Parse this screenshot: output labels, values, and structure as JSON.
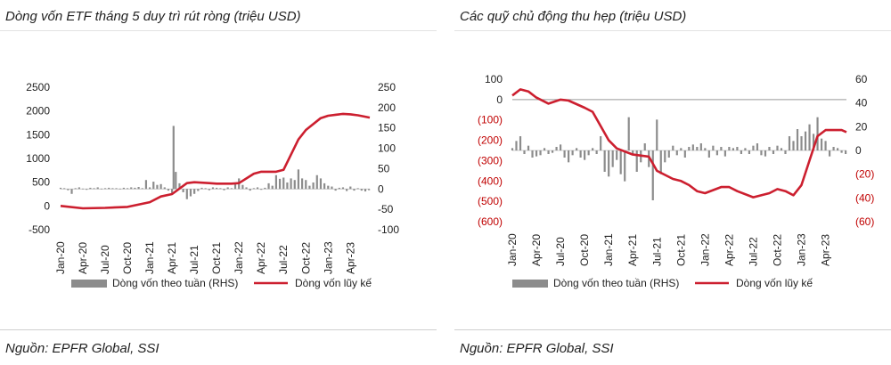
{
  "chart_data": [
    {
      "type": "bar+line",
      "title": "Dòng vốn ETF tháng 5 duy trì rút ròng (triệu USD)",
      "source": "Nguồn: EPFR Global, SSI",
      "x_ticks": [
        "Jan-20",
        "Apr-20",
        "Jul-20",
        "Oct-20",
        "Jan-21",
        "Apr-21",
        "Jul-21",
        "Oct-21",
        "Jan-22",
        "Apr-22",
        "Jul-22",
        "Oct-22",
        "Jan-23",
        "Apr-23"
      ],
      "y_left_ticks": [
        "2500",
        "2000",
        "1500",
        "1000",
        "500",
        "0",
        "-500"
      ],
      "y_left_range": [
        -500,
        2500
      ],
      "y_right_ticks": [
        "250",
        "200",
        "150",
        "100",
        "50",
        "0",
        "-50",
        "-100"
      ],
      "y_right_range": [
        -100,
        250
      ],
      "legend": {
        "bar": "Dòng vốn theo tuần (RHS)",
        "line": "Dòng vốn lũy kế"
      },
      "colors": {
        "bar": "#8c8c8c",
        "line": "#cc1f2f"
      },
      "line_series": {
        "name": "Dòng vốn lũy kế",
        "x": [
          0,
          3,
          6,
          9,
          12,
          13.5,
          15,
          17,
          18,
          20,
          21,
          23,
          24,
          26,
          27,
          29,
          30,
          32,
          33,
          35,
          36,
          37,
          38,
          39,
          40,
          41,
          41.6
        ],
        "y": [
          0,
          -50,
          -40,
          -20,
          80,
          200,
          250,
          480,
          500,
          480,
          470,
          470,
          480,
          680,
          720,
          720,
          760,
          1400,
          1600,
          1850,
          1900,
          1920,
          1940,
          1930,
          1910,
          1880,
          1860
        ]
      },
      "bar_series": {
        "name": "Dòng vốn theo tuần (RHS)",
        "points": [
          [
            0,
            3
          ],
          [
            0.5,
            2
          ],
          [
            1,
            -3
          ],
          [
            1.5,
            -12
          ],
          [
            2,
            2
          ],
          [
            2.5,
            4
          ],
          [
            3,
            1
          ],
          [
            3.5,
            -2
          ],
          [
            4,
            3
          ],
          [
            4.5,
            2
          ],
          [
            5,
            4
          ],
          [
            5.5,
            1
          ],
          [
            6,
            2
          ],
          [
            6.5,
            3
          ],
          [
            7,
            2
          ],
          [
            7.5,
            2
          ],
          [
            8,
            1
          ],
          [
            8.5,
            3
          ],
          [
            9,
            2
          ],
          [
            9.5,
            4
          ],
          [
            10,
            3
          ],
          [
            10.5,
            5
          ],
          [
            11,
            2
          ],
          [
            11.5,
            22
          ],
          [
            12,
            4
          ],
          [
            12.5,
            18
          ],
          [
            13,
            10
          ],
          [
            13.5,
            12
          ],
          [
            14,
            4
          ],
          [
            14.5,
            -4
          ],
          [
            15,
            -10
          ],
          [
            15.2,
            155
          ],
          [
            15.5,
            42
          ],
          [
            16,
            14
          ],
          [
            16.5,
            -8
          ],
          [
            17,
            -25
          ],
          [
            17.5,
            -18
          ],
          [
            18,
            -12
          ],
          [
            18.5,
            -5
          ],
          [
            19,
            3
          ],
          [
            19.5,
            2
          ],
          [
            20,
            -3
          ],
          [
            20.5,
            4
          ],
          [
            21,
            3
          ],
          [
            21.5,
            2
          ],
          [
            22,
            -3
          ],
          [
            22.5,
            4
          ],
          [
            23,
            2
          ],
          [
            23.5,
            14
          ],
          [
            24,
            26
          ],
          [
            24.5,
            10
          ],
          [
            25,
            4
          ],
          [
            25.5,
            -4
          ],
          [
            26,
            2
          ],
          [
            26.5,
            4
          ],
          [
            27,
            -2
          ],
          [
            27.5,
            3
          ],
          [
            28,
            14
          ],
          [
            28.5,
            8
          ],
          [
            29,
            34
          ],
          [
            29.5,
            25
          ],
          [
            30,
            28
          ],
          [
            30.5,
            16
          ],
          [
            31,
            26
          ],
          [
            31.5,
            22
          ],
          [
            32,
            48
          ],
          [
            32.5,
            26
          ],
          [
            33,
            22
          ],
          [
            33.5,
            8
          ],
          [
            34,
            16
          ],
          [
            34.5,
            34
          ],
          [
            35,
            26
          ],
          [
            35.5,
            14
          ],
          [
            36,
            8
          ],
          [
            36.5,
            6
          ],
          [
            37,
            -4
          ],
          [
            37.5,
            3
          ],
          [
            38,
            4
          ],
          [
            38.5,
            -5
          ],
          [
            39,
            6
          ],
          [
            39.5,
            -4
          ],
          [
            40,
            2
          ],
          [
            40.5,
            -4
          ],
          [
            41,
            -6
          ],
          [
            41.5,
            -3
          ]
        ]
      }
    },
    {
      "type": "bar+line",
      "title": "Các quỹ chủ động thu hẹp (triệu USD)",
      "source": "Nguồn: EPFR Global, SSI",
      "x_ticks": [
        "Jan-20",
        "Apr-20",
        "Jul-20",
        "Oct-20",
        "Jan-21",
        "Apr-21",
        "Jul-21",
        "Oct-21",
        "Jan-22",
        "Apr-22",
        "Jul-22",
        "Oct-22",
        "Jan-23",
        "Apr-23"
      ],
      "y_left_ticks": [
        "100",
        "0",
        "(100)",
        "(200)",
        "(300)",
        "(400)",
        "(500)",
        "(600)"
      ],
      "y_left_range": [
        -600,
        100
      ],
      "y_right_ticks": [
        "60",
        "40",
        "20",
        "0",
        "(20)",
        "(40)",
        "(60)"
      ],
      "y_right_range": [
        -60,
        60
      ],
      "legend": {
        "bar": "Dòng vốn theo tuần (RHS)",
        "line": "Dòng vốn lũy kế"
      },
      "colors": {
        "bar": "#8c8c8c",
        "line": "#cc1f2f",
        "negative_tick": "#c00000"
      },
      "line_series": {
        "name": "Dòng vốn lũy kế",
        "x": [
          0,
          1,
          2,
          3,
          4.5,
          6,
          7,
          9,
          10,
          12,
          13,
          15,
          17,
          18,
          20,
          21,
          22,
          23,
          24,
          26,
          27,
          28,
          30,
          32,
          33,
          34,
          35,
          36,
          37,
          38,
          39,
          40,
          41,
          41.6
        ],
        "y": [
          20,
          50,
          40,
          10,
          -20,
          0,
          -5,
          -40,
          -60,
          -200,
          -240,
          -270,
          -280,
          -350,
          -390,
          -400,
          -420,
          -450,
          -460,
          -430,
          -430,
          -450,
          -480,
          -460,
          -440,
          -450,
          -470,
          -420,
          -300,
          -180,
          -150,
          -150,
          -150,
          -160
        ]
      },
      "bar_series": {
        "name": "Dòng vốn theo tuần (RHS)",
        "points": [
          [
            0,
            2
          ],
          [
            0.5,
            8
          ],
          [
            1,
            12
          ],
          [
            1.5,
            -3
          ],
          [
            2,
            4
          ],
          [
            2.5,
            -6
          ],
          [
            3,
            -5
          ],
          [
            3.5,
            -4
          ],
          [
            4,
            2
          ],
          [
            4.5,
            -3
          ],
          [
            5,
            -2
          ],
          [
            5.5,
            3
          ],
          [
            6,
            5
          ],
          [
            6.5,
            -6
          ],
          [
            7,
            -10
          ],
          [
            7.5,
            -4
          ],
          [
            8,
            2
          ],
          [
            8.5,
            -6
          ],
          [
            9,
            -8
          ],
          [
            9.5,
            -4
          ],
          [
            10,
            2
          ],
          [
            10.5,
            -3
          ],
          [
            11,
            12
          ],
          [
            11.5,
            -18
          ],
          [
            12,
            -22
          ],
          [
            12.5,
            -14
          ],
          [
            13,
            -8
          ],
          [
            13.5,
            -20
          ],
          [
            14,
            -26
          ],
          [
            14.5,
            28
          ],
          [
            15,
            -4
          ],
          [
            15.5,
            -18
          ],
          [
            16,
            -10
          ],
          [
            16.5,
            6
          ],
          [
            17,
            -14
          ],
          [
            17.5,
            -42
          ],
          [
            18,
            26
          ],
          [
            18.5,
            -20
          ],
          [
            19,
            -10
          ],
          [
            19.5,
            -6
          ],
          [
            20,
            4
          ],
          [
            20.5,
            -4
          ],
          [
            21,
            2
          ],
          [
            21.5,
            -6
          ],
          [
            22,
            3
          ],
          [
            22.5,
            5
          ],
          [
            23,
            3
          ],
          [
            23.5,
            6
          ],
          [
            24,
            2
          ],
          [
            24.5,
            -6
          ],
          [
            25,
            4
          ],
          [
            25.5,
            -4
          ],
          [
            26,
            3
          ],
          [
            26.5,
            -5
          ],
          [
            27,
            3
          ],
          [
            27.5,
            2
          ],
          [
            28,
            3
          ],
          [
            28.5,
            -3
          ],
          [
            29,
            2
          ],
          [
            29.5,
            -3
          ],
          [
            30,
            4
          ],
          [
            30.5,
            6
          ],
          [
            31,
            -4
          ],
          [
            31.5,
            -5
          ],
          [
            32,
            3
          ],
          [
            32.5,
            -3
          ],
          [
            33,
            4
          ],
          [
            33.5,
            2
          ],
          [
            34,
            -3
          ],
          [
            34.5,
            12
          ],
          [
            35,
            8
          ],
          [
            35.5,
            18
          ],
          [
            36,
            12
          ],
          [
            36.5,
            16
          ],
          [
            37,
            22
          ],
          [
            37.5,
            14
          ],
          [
            38,
            28
          ],
          [
            38.5,
            10
          ],
          [
            39,
            8
          ],
          [
            39.5,
            -5
          ],
          [
            40,
            3
          ],
          [
            40.5,
            2
          ],
          [
            41,
            -2
          ],
          [
            41.5,
            -3
          ]
        ]
      }
    }
  ]
}
